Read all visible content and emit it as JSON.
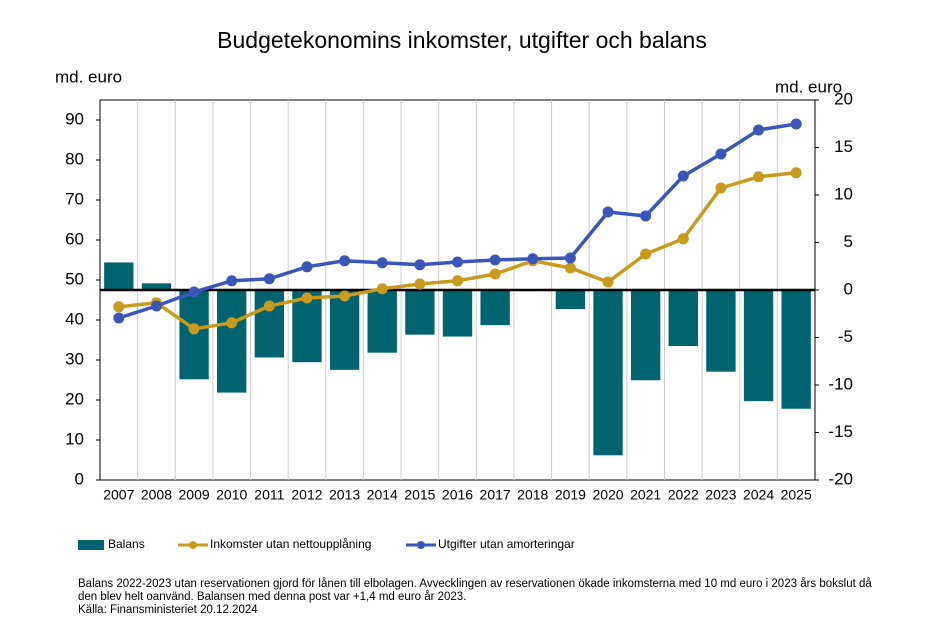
{
  "chart_data": {
    "type": "bar-line",
    "title": "Budgetekonomins inkomster, utgifter och balans",
    "y_label": "md. euro",
    "y2_label": "md. euro",
    "categories": [
      "2007",
      "2008",
      "2009",
      "2010",
      "2011",
      "2012",
      "2013",
      "2014",
      "2015",
      "2016",
      "2017",
      "2018",
      "2019",
      "2020",
      "2021",
      "2022",
      "2023",
      "2024",
      "2025"
    ],
    "ylim": [
      0,
      95
    ],
    "yticks": [
      0,
      10,
      20,
      30,
      40,
      50,
      60,
      70,
      80,
      90
    ],
    "y2lim": [
      -20,
      20
    ],
    "y2ticks": [
      -20,
      -15,
      -10,
      -5,
      0,
      5,
      10,
      15,
      20
    ],
    "grid": true,
    "series": [
      {
        "name": "Balans",
        "type": "bar",
        "axis": "y2",
        "color": "#006470",
        "values": [
          2.9,
          0.7,
          -9.4,
          -10.8,
          -7.1,
          -7.6,
          -8.4,
          -6.6,
          -4.7,
          -4.9,
          -3.7,
          0,
          -2.0,
          -17.4,
          -9.5,
          -5.9,
          -8.6,
          -11.7,
          -12.5
        ]
      },
      {
        "name": "Inkomster utan nettoupplåning",
        "type": "line",
        "color": "#c99a1e",
        "values": [
          43.3,
          44.3,
          37.8,
          39.3,
          43.5,
          45.5,
          46,
          47.8,
          49,
          49.8,
          51.5,
          54.8,
          53,
          49.5,
          56.5,
          60.3,
          73,
          75.8,
          76.8
        ]
      },
      {
        "name": "Utgifter utan amorteringar",
        "type": "line",
        "color": "#3a56b8",
        "values": [
          40.5,
          43.5,
          47,
          49.8,
          50.3,
          53.3,
          54.8,
          54.3,
          53.8,
          54.5,
          55,
          55.3,
          55.5,
          67,
          66,
          76,
          81.5,
          87.5,
          89
        ]
      }
    ],
    "notes": [
      "Balans 2022-2023 utan reservationen gjord för lånen till elbolagen. Avvecklingen av reservationen ökade inkomsterna med 10 md euro i 2023 års bokslut då",
      "den blev helt oanvänd. Balansen med denna post var +1,4 md euro år 2023.",
      "Källa: Finansministeriet 20.12.2024"
    ]
  }
}
